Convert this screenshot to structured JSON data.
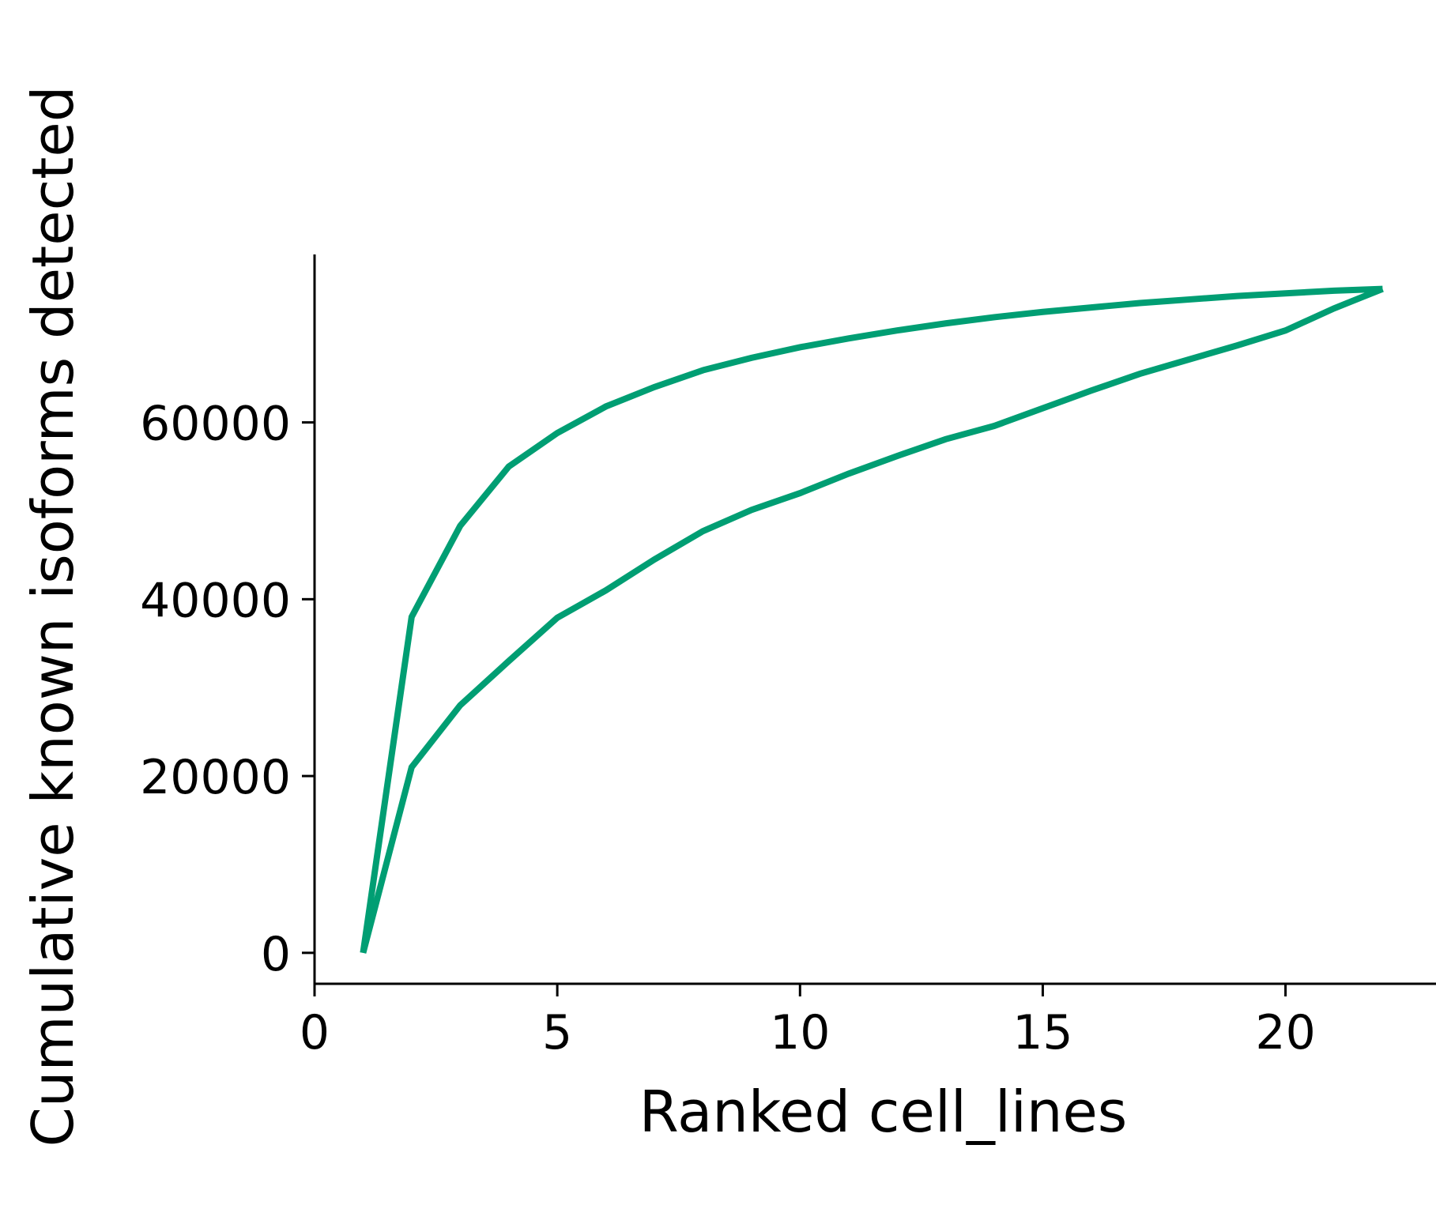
{
  "chart_data": {
    "type": "line",
    "xlabel": "Ranked cell_lines",
    "ylabel": "Cumulative known isoforms detected",
    "xlim": [
      0,
      23.1
    ],
    "ylim": [
      -3500,
      79000
    ],
    "xticks": [
      0,
      5,
      10,
      15,
      20
    ],
    "yticks": [
      0,
      20000,
      40000,
      60000
    ],
    "grid": false,
    "line_color": "#009e73",
    "series": [
      {
        "x": [
          1,
          2,
          3,
          4,
          5,
          6,
          7,
          8,
          9,
          10,
          11,
          12,
          13,
          14,
          15,
          16,
          17,
          18,
          19,
          20,
          21,
          22
        ],
        "y": [
          0,
          38000,
          48300,
          55000,
          58800,
          61800,
          64000,
          65900,
          67300,
          68500,
          69500,
          70400,
          71200,
          71900,
          72500,
          73000,
          73500,
          73900,
          74300,
          74600,
          74900,
          75100
        ]
      },
      {
        "x": [
          1,
          2,
          3,
          4,
          5,
          6,
          7,
          8,
          9,
          10,
          11,
          12,
          13,
          14,
          15,
          16,
          17,
          18,
          19,
          20,
          21,
          22
        ],
        "y": [
          0,
          21000,
          28000,
          33000,
          37900,
          41000,
          44500,
          47700,
          50100,
          52000,
          54200,
          56200,
          58100,
          59600,
          61600,
          63600,
          65500,
          67100,
          68700,
          70400,
          72900,
          75100
        ]
      }
    ]
  }
}
